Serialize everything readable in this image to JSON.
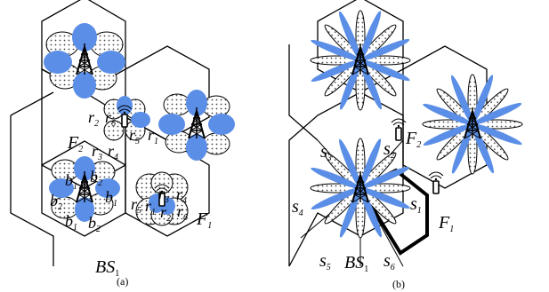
{
  "colors": {
    "beam_fill": "#5b8ee6",
    "background": "#ffffff",
    "stroke": "#000000",
    "dotted_lobe_fill": "#ffffff"
  },
  "icons": {
    "base_station": "tower-icon",
    "femto": "femto-antenna-icon"
  },
  "panel_a": {
    "caption": "(a)",
    "labels": {
      "F2_main": "F",
      "F2_sub": "2",
      "F1_main": "F",
      "F1_sub": "1",
      "BS1_main": "BS",
      "BS1_sub": "1",
      "r_main": "r",
      "r1_sub": "1",
      "r2_sub": "2",
      "r3_sub": "3",
      "r4_sub": "4",
      "r5_sub": "5",
      "r6_sub": "6",
      "b_main": "b",
      "b1_sub": "1",
      "b2_sub": "2"
    }
  },
  "panel_b": {
    "caption": "(b)",
    "labels": {
      "F2_main": "F",
      "F2_sub": "2",
      "F1_main": "F",
      "F1_sub": "1",
      "BS_main": "BS",
      "BS_sub": "1",
      "s_main": "s",
      "s1_sub": "1",
      "s2_sub": "2",
      "s3_sub": "3",
      "s4_sub": "4",
      "s5_sub": "5",
      "s6_sub": "6"
    }
  }
}
